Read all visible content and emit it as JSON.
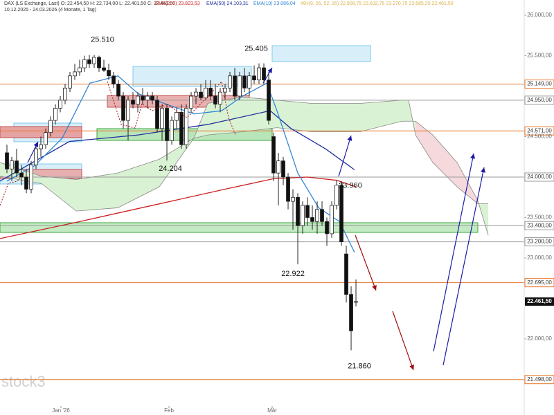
{
  "chart_data": {
    "type": "candlestick",
    "header": [
      "DAX (LS Exchange, Last)  O: 22.454,50  H: 22.734,00  L: 22.401,50  C: 22.461,50",
      "EMA(200) 23.823,53",
      "EMA(50) 24.103,31",
      "EMA(10) 23.086,04",
      "IKH(9, 26, 52, 26) 22.908,75  23.632,75  23.270,75  23.685,25  22.461,50"
    ],
    "subtitle": "10.12.2025 - 24.03.2026  (4 Monate, 1 Tag)",
    "watermark": "stock3",
    "xlim": [
      -1.43,
      106.71
    ],
    "ylim": [
      21145,
      26060
    ],
    "xticks": [
      {
        "value": 11.14,
        "label": "Jan '26"
      },
      {
        "value": 33.43,
        "label": "Feb"
      },
      {
        "value": 54.71,
        "label": "Mär"
      }
    ],
    "yticks": [
      {
        "value": 26000,
        "label": "26.000,00"
      },
      {
        "value": 25500,
        "label": "25.500,00"
      },
      {
        "value": 24500,
        "label": "24.500,00"
      },
      {
        "value": 23500,
        "label": "23.500,00"
      },
      {
        "value": 23000,
        "label": "23.000,00"
      },
      {
        "value": 22000,
        "label": "22.000,00"
      }
    ],
    "candles": [
      [
        24300,
        24400,
        24050,
        24100
      ],
      [
        24100,
        24250,
        23950,
        24200
      ],
      [
        24200,
        24350,
        24000,
        24050
      ],
      [
        24050,
        24150,
        23900,
        24000
      ],
      [
        24000,
        24100,
        23800,
        23850
      ],
      [
        23850,
        24200,
        23800,
        24150
      ],
      [
        24150,
        24400,
        24100,
        24350
      ],
      [
        24350,
        24500,
        24250,
        24400
      ],
      [
        24400,
        24600,
        24350,
        24550
      ],
      [
        24550,
        24750,
        24500,
        24700
      ],
      [
        24700,
        24900,
        24650,
        24850
      ],
      [
        24850,
        25000,
        24800,
        24950
      ],
      [
        24950,
        25150,
        24900,
        25100
      ],
      [
        25100,
        25300,
        25050,
        25250
      ],
      [
        25250,
        25400,
        25200,
        25300
      ],
      [
        25300,
        25450,
        25250,
        25350
      ],
      [
        25350,
        25500,
        25300,
        25450
      ],
      [
        25450,
        25510,
        25350,
        25400
      ],
      [
        25400,
        25510,
        25350,
        25480
      ],
      [
        25480,
        25500,
        25300,
        25350
      ],
      [
        25350,
        25450,
        25300,
        25320
      ],
      [
        25320,
        25400,
        25200,
        25250
      ],
      [
        25250,
        25300,
        25100,
        25150
      ],
      [
        25150,
        25200,
        24950,
        25000
      ],
      [
        25000,
        25050,
        24600,
        24700
      ],
      [
        24700,
        25000,
        24450,
        24950
      ],
      [
        24950,
        25050,
        24850,
        24900
      ],
      [
        24900,
        25050,
        24800,
        25000
      ],
      [
        25000,
        25100,
        24900,
        24950
      ],
      [
        24950,
        25050,
        24850,
        25000
      ],
      [
        25000,
        25050,
        24900,
        24950
      ],
      [
        24950,
        25000,
        24550,
        24600
      ],
      [
        24600,
        24900,
        24450,
        24850
      ],
      [
        24850,
        24900,
        24204,
        24450
      ],
      [
        24450,
        24750,
        24400,
        24700
      ],
      [
        24700,
        24850,
        24600,
        24800
      ],
      [
        24800,
        24900,
        24350,
        24400
      ],
      [
        24400,
        24900,
        24350,
        24850
      ],
      [
        24850,
        25050,
        24800,
        25000
      ],
      [
        25000,
        25100,
        24900,
        25050
      ],
      [
        25050,
        25150,
        24950,
        24980
      ],
      [
        24980,
        25200,
        24950,
        25100
      ],
      [
        25100,
        25200,
        24950,
        25000
      ],
      [
        25000,
        25150,
        24850,
        24900
      ],
      [
        24900,
        25100,
        24800,
        25050
      ],
      [
        25050,
        25150,
        24950,
        25100
      ],
      [
        25100,
        25300,
        25050,
        25250
      ],
      [
        25250,
        25350,
        24950,
        25000
      ],
      [
        25000,
        25300,
        24950,
        25250
      ],
      [
        25250,
        25350,
        25050,
        25100
      ],
      [
        25100,
        25300,
        25000,
        25250
      ],
      [
        25250,
        25380,
        25150,
        25200
      ],
      [
        25200,
        25405,
        25150,
        25350
      ],
      [
        25350,
        25405,
        25150,
        25200
      ],
      [
        25200,
        25300,
        24650,
        24700
      ],
      [
        24500,
        24550,
        23950,
        24050
      ],
      [
        24050,
        24300,
        23650,
        24200
      ],
      [
        24200,
        24250,
        23900,
        24000
      ],
      [
        24000,
        24050,
        23600,
        23700
      ],
      [
        23700,
        23850,
        23350,
        23750
      ],
      [
        23750,
        23800,
        22922,
        23400
      ],
      [
        23400,
        23700,
        23300,
        23650
      ],
      [
        23650,
        23750,
        23400,
        23500
      ],
      [
        23500,
        23650,
        23350,
        23450
      ],
      [
        23450,
        23700,
        23300,
        23600
      ],
      [
        23600,
        23700,
        23400,
        23450
      ],
      [
        23450,
        23500,
        23150,
        23300
      ],
      [
        23300,
        23700,
        23250,
        23650
      ],
      [
        23650,
        23960,
        23600,
        23900
      ],
      [
        23900,
        23950,
        23150,
        23200
      ],
      [
        23050,
        23150,
        22450,
        22550
      ],
      [
        22550,
        22650,
        21860,
        22100
      ],
      [
        22454.5,
        22734,
        22401.5,
        22461.5
      ]
    ],
    "lines": [
      {
        "name": "EMA(200)",
        "color": "#cc1f1f",
        "x": [
          -1.43,
          15,
          30,
          45,
          55,
          62,
          68,
          72
        ],
        "values": [
          23240,
          23450,
          23650,
          23850,
          23980,
          24000,
          23960,
          23880
        ]
      },
      {
        "name": "EMA(50)",
        "color": "#1f2f9e",
        "x": [
          -1.43,
          12.9,
          27.1,
          41.4,
          54.3,
          58.6,
          65.7,
          71.7
        ],
        "values": [
          23950,
          24440,
          24520,
          24650,
          24820,
          24600,
          24350,
          24090
        ]
      },
      {
        "name": "EMA(10)",
        "color": "#2f86d6",
        "x": [
          0,
          5.7,
          11.4,
          17.1,
          22.9,
          27.1,
          32.9,
          38.6,
          44.3,
          48.6,
          53.6,
          55.7,
          60,
          64.3,
          68.6,
          71.7
        ],
        "values": [
          23950,
          24140,
          24480,
          25160,
          25250,
          25030,
          24900,
          24780,
          24820,
          25000,
          25160,
          24820,
          24050,
          23620,
          23450,
          23070
        ]
      }
    ],
    "cloud": {
      "x": [
        -1.43,
        7.14,
        14.29,
        22.86,
        31.43,
        38.57,
        41.43,
        48.57,
        55.71,
        62.86,
        72.86,
        81.43,
        82.86,
        84.29,
        87.86,
        92.86,
        97.14,
        99.29
      ],
      "span_a": [
        24180,
        24010,
        23970,
        24050,
        24220,
        24480,
        24910,
        24990,
        24950,
        24910,
        24910,
        24950,
        24950,
        24520,
        24180,
        23880,
        23670,
        23670
      ],
      "span_b": [
        24010,
        23920,
        23580,
        23620,
        23880,
        24480,
        24520,
        24560,
        24610,
        24560,
        24560,
        24690,
        24690,
        24690,
        24520,
        24180,
        23710,
        23280
      ]
    },
    "levels": [
      {
        "value": 25149,
        "label": "25.149,00",
        "color": "#e8762c"
      },
      {
        "value": 24950,
        "label": "24.950,00",
        "color": "#999999"
      },
      {
        "value": 24571,
        "label": "24.571,00",
        "color": "#e8762c"
      },
      {
        "value": 24000,
        "label": "24.000,00",
        "color": "#999999"
      },
      {
        "value": 23400,
        "label": "23.400,00",
        "color": "#999999"
      },
      {
        "value": 23200,
        "label": "23.200,00",
        "color": "#999999"
      },
      {
        "value": 22695,
        "label": "22.695,00",
        "color": "#e8762c"
      },
      {
        "value": 21498,
        "label": "21.498,00",
        "color": "#e8762c"
      }
    ],
    "last_price": {
      "value": 22461.5,
      "label": "22.461,50"
    },
    "annotations": [
      {
        "x": 18,
        "value": 25510,
        "label": "25.510"
      },
      {
        "x": 52,
        "value": 25405,
        "label": "25.405"
      },
      {
        "x": 33,
        "value": 24204,
        "label": "24.204"
      },
      {
        "x": 68,
        "value": 23960,
        "label": "23.960"
      },
      {
        "x": 60,
        "value": 22922,
        "label": "22.922"
      },
      {
        "x": 71,
        "value": 21860,
        "label": "21.860"
      }
    ]
  }
}
